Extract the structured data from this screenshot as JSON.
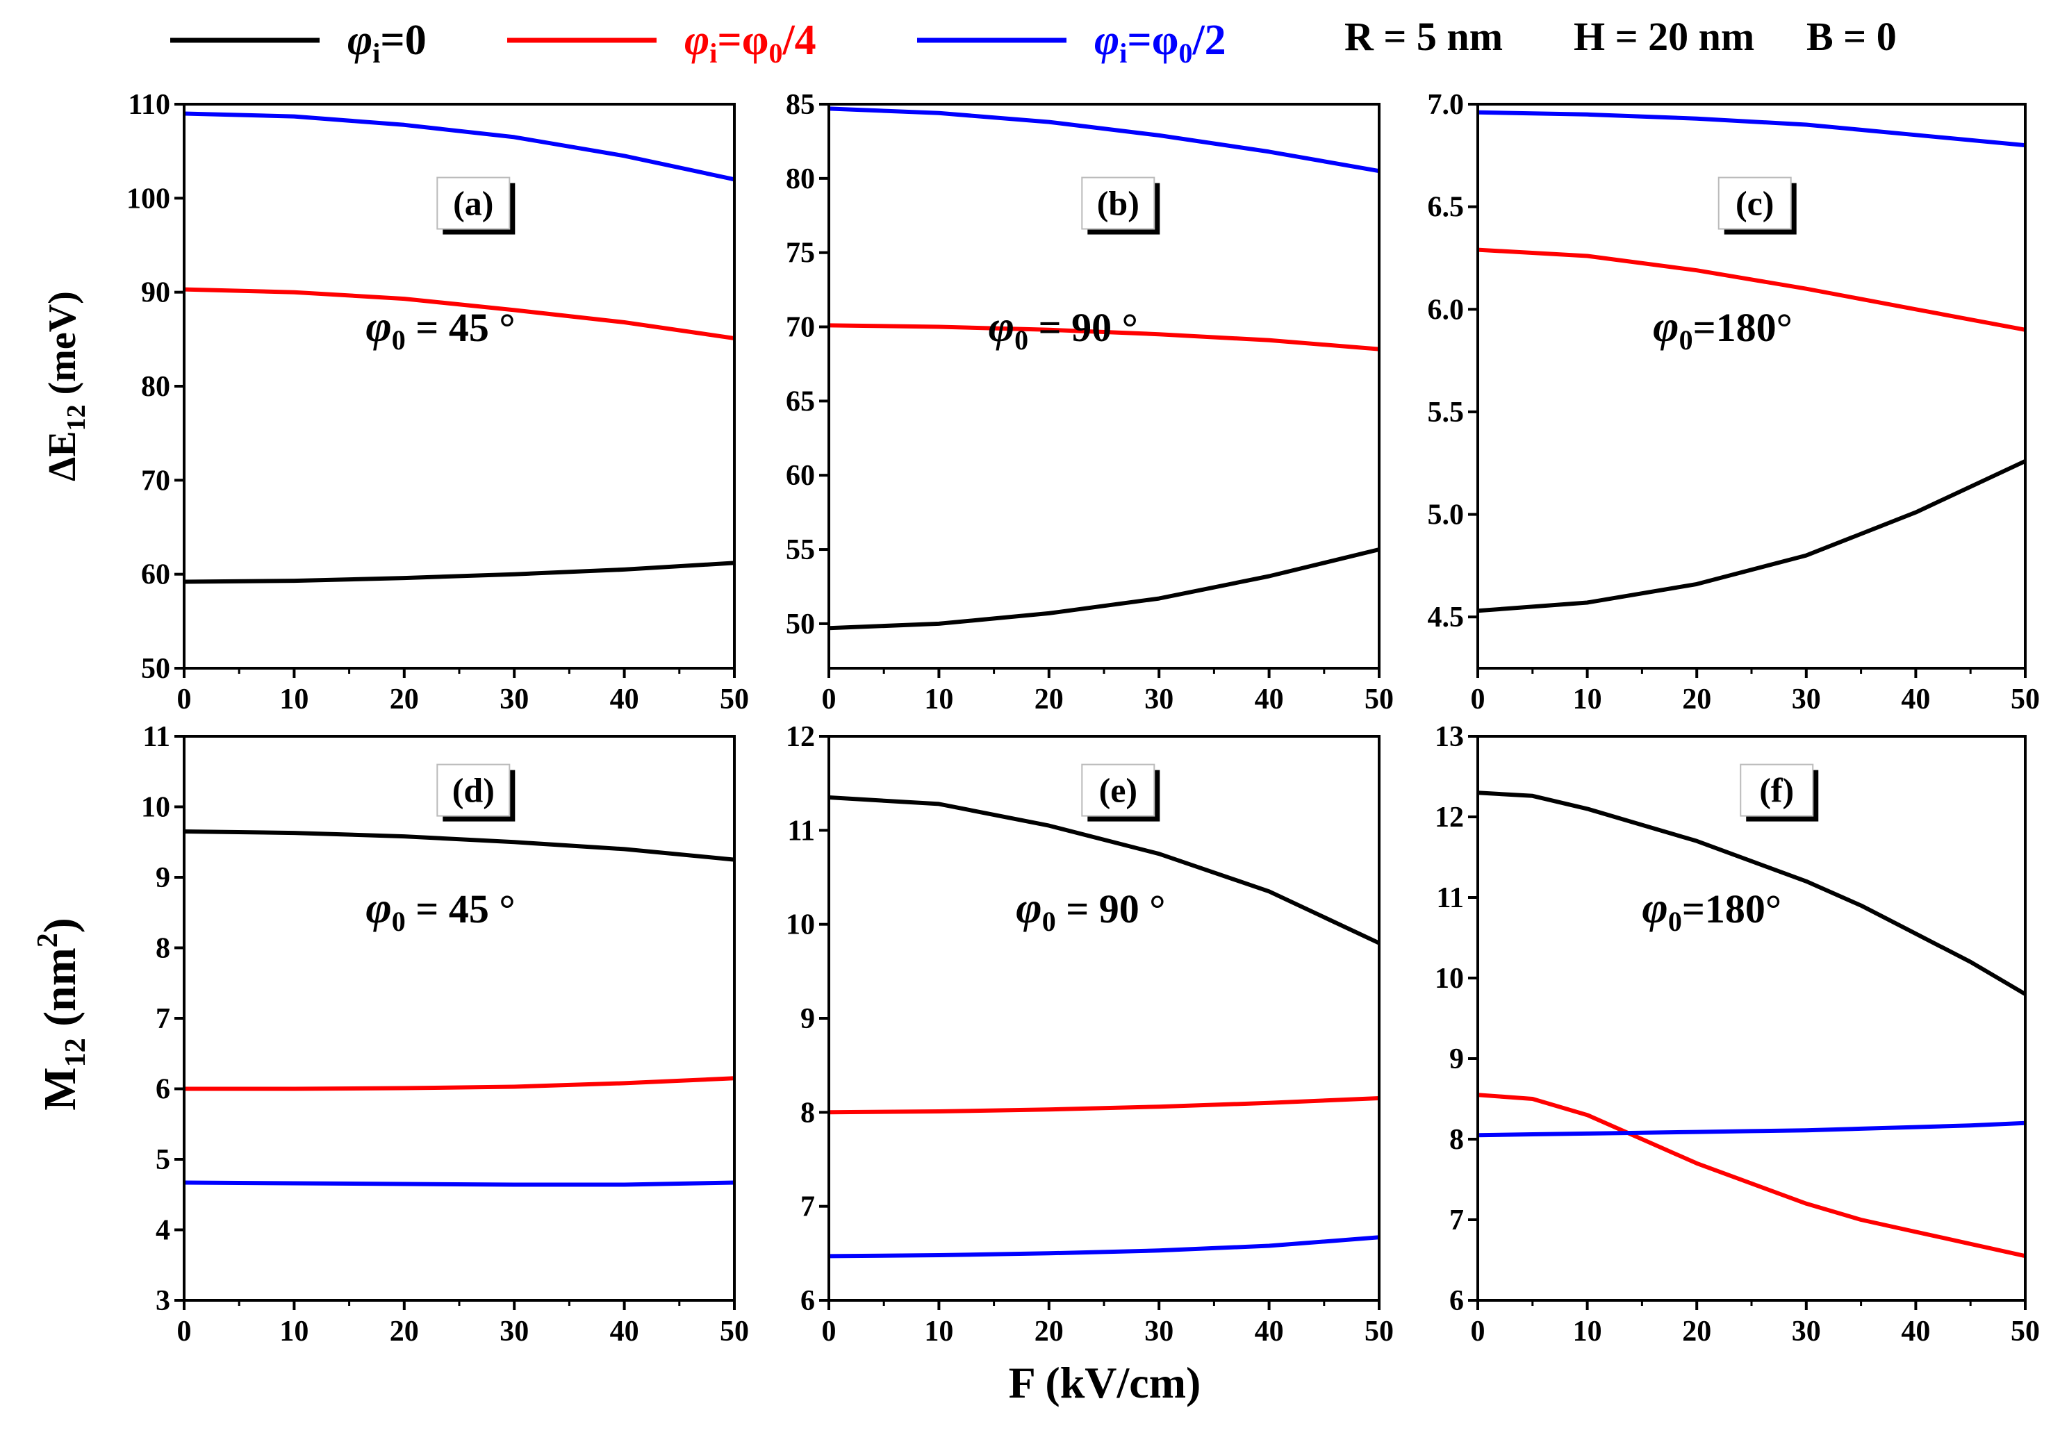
{
  "legend": {
    "entries": [
      {
        "phi": "φ",
        "sub": "i",
        "eq": "=0",
        "color": "#000000"
      },
      {
        "phi": "φ",
        "sub": "i",
        "eq": "=φ",
        "sub2": "0",
        "tail": "/4",
        "color": "#ff0000"
      },
      {
        "phi": "φ",
        "sub": "i",
        "eq": "=φ",
        "sub2": "0",
        "tail": "/2",
        "color": "#0000ff"
      }
    ],
    "params": [
      "R = 5 nm",
      "H = 20 nm",
      "B = 0"
    ]
  },
  "shared_xlabel": "F (kV/cm)",
  "row_ylabels": {
    "top": {
      "main": "ΔE",
      "sub": "12",
      "unit": " (meV)"
    },
    "bottom": {
      "main": "M",
      "sub": "12",
      "unit": " (nm",
      "sup": "2",
      "close": ")"
    }
  },
  "chart_data": [
    {
      "type": "line",
      "panel": "(a)",
      "annotation": {
        "phi": "φ",
        "sub": "0",
        "text": " = 45 °"
      },
      "xlim": [
        0,
        50
      ],
      "ylim": [
        50,
        110
      ],
      "xticks": [
        0,
        10,
        20,
        30,
        40,
        50
      ],
      "yticks": [
        50,
        60,
        70,
        80,
        90,
        100,
        110
      ],
      "x": [
        0,
        10,
        20,
        30,
        40,
        50
      ],
      "series": [
        {
          "name": "φi=0",
          "color": "#000000",
          "values": [
            59.2,
            59.3,
            59.6,
            60.0,
            60.5,
            61.2
          ]
        },
        {
          "name": "φi=φ0/4",
          "color": "#ff0000",
          "values": [
            90.3,
            90.0,
            89.3,
            88.1,
            86.8,
            85.1
          ]
        },
        {
          "name": "φi=φ0/2",
          "color": "#0000ff",
          "values": [
            109.0,
            108.7,
            107.8,
            106.5,
            104.5,
            102.0
          ]
        }
      ]
    },
    {
      "type": "line",
      "panel": "(b)",
      "annotation": {
        "phi": "φ",
        "sub": "0",
        "text": " = 90 °"
      },
      "xlim": [
        0,
        50
      ],
      "ylim": [
        47,
        85
      ],
      "xticks": [
        0,
        10,
        20,
        30,
        40,
        50
      ],
      "yticks": [
        50,
        55,
        60,
        65,
        70,
        75,
        80,
        85
      ],
      "x": [
        0,
        10,
        20,
        30,
        40,
        50
      ],
      "series": [
        {
          "name": "φi=0",
          "color": "#000000",
          "values": [
            49.7,
            50.0,
            50.7,
            51.7,
            53.2,
            55.0
          ]
        },
        {
          "name": "φi=φ0/4",
          "color": "#ff0000",
          "values": [
            70.1,
            70.0,
            69.8,
            69.5,
            69.1,
            68.5
          ]
        },
        {
          "name": "φi=φ0/2",
          "color": "#0000ff",
          "values": [
            84.7,
            84.4,
            83.8,
            82.9,
            81.8,
            80.5
          ]
        }
      ]
    },
    {
      "type": "line",
      "panel": "(c)",
      "annotation": {
        "phi": "φ",
        "sub": "0",
        "text": "=180°"
      },
      "xlim": [
        0,
        50
      ],
      "ylim": [
        4.25,
        7.0
      ],
      "xticks": [
        0,
        10,
        20,
        30,
        40,
        50
      ],
      "yticks": [
        4.5,
        5.0,
        5.5,
        6.0,
        6.5,
        7.0
      ],
      "ytick_labels": [
        "4.5",
        "5.0",
        "5.5",
        "6.0",
        "6.5",
        "7.0"
      ],
      "x": [
        0,
        10,
        20,
        30,
        40,
        50
      ],
      "series": [
        {
          "name": "φi=0",
          "color": "#000000",
          "values": [
            4.53,
            4.57,
            4.66,
            4.8,
            5.01,
            5.26
          ]
        },
        {
          "name": "φi=φ0/4",
          "color": "#ff0000",
          "values": [
            6.29,
            6.26,
            6.19,
            6.1,
            6.0,
            5.9
          ]
        },
        {
          "name": "φi=φ0/2",
          "color": "#0000ff",
          "values": [
            6.96,
            6.95,
            6.93,
            6.9,
            6.85,
            6.8
          ]
        }
      ]
    },
    {
      "type": "line",
      "panel": "(d)",
      "annotation": {
        "phi": "φ",
        "sub": "0",
        "text": " = 45 °"
      },
      "xlim": [
        0,
        50
      ],
      "ylim": [
        3,
        11
      ],
      "xticks": [
        0,
        10,
        20,
        30,
        40,
        50
      ],
      "yticks": [
        3,
        4,
        5,
        6,
        7,
        8,
        9,
        10,
        11
      ],
      "x": [
        0,
        10,
        20,
        30,
        40,
        50
      ],
      "series": [
        {
          "name": "φi=0",
          "color": "#000000",
          "values": [
            9.65,
            9.63,
            9.58,
            9.5,
            9.4,
            9.25
          ]
        },
        {
          "name": "φi=φ0/4",
          "color": "#ff0000",
          "values": [
            6.0,
            6.0,
            6.01,
            6.03,
            6.08,
            6.15
          ]
        },
        {
          "name": "φi=φ0/2",
          "color": "#0000ff",
          "values": [
            4.67,
            4.66,
            4.65,
            4.64,
            4.64,
            4.67
          ]
        }
      ]
    },
    {
      "type": "line",
      "panel": "(e)",
      "annotation": {
        "phi": "φ",
        "sub": "0",
        "text": " = 90 °"
      },
      "xlim": [
        0,
        50
      ],
      "ylim": [
        6,
        12
      ],
      "xticks": [
        0,
        10,
        20,
        30,
        40,
        50
      ],
      "yticks": [
        6,
        7,
        8,
        9,
        10,
        11,
        12
      ],
      "x": [
        0,
        10,
        20,
        30,
        40,
        50
      ],
      "series": [
        {
          "name": "φi=0",
          "color": "#000000",
          "values": [
            11.35,
            11.28,
            11.05,
            10.75,
            10.35,
            9.8
          ]
        },
        {
          "name": "φi=φ0/4",
          "color": "#ff0000",
          "values": [
            8.0,
            8.01,
            8.03,
            8.06,
            8.1,
            8.15
          ]
        },
        {
          "name": "φi=φ0/2",
          "color": "#0000ff",
          "values": [
            6.47,
            6.48,
            6.5,
            6.53,
            6.58,
            6.67
          ]
        }
      ]
    },
    {
      "type": "line",
      "panel": "(f)",
      "annotation": {
        "phi": "φ",
        "sub": "0",
        "text": "=180°"
      },
      "xlim": [
        0,
        50
      ],
      "ylim": [
        6,
        13
      ],
      "xticks": [
        0,
        10,
        20,
        30,
        40,
        50
      ],
      "yticks": [
        6,
        7,
        8,
        9,
        10,
        11,
        12,
        13
      ],
      "x": [
        0,
        5,
        10,
        15,
        20,
        25,
        30,
        35,
        40,
        45,
        50
      ],
      "series": [
        {
          "name": "φi=0",
          "color": "#000000",
          "values": [
            12.3,
            12.26,
            12.1,
            11.9,
            11.7,
            11.45,
            11.2,
            10.9,
            10.55,
            10.2,
            9.8
          ]
        },
        {
          "name": "φi=φ0/4",
          "color": "#ff0000",
          "values": [
            8.55,
            8.5,
            8.3,
            8.0,
            7.7,
            7.45,
            7.2,
            7.0,
            6.85,
            6.7,
            6.55
          ]
        },
        {
          "name": "φi=φ0/2",
          "color": "#0000ff",
          "values": [
            8.05,
            8.06,
            8.07,
            8.08,
            8.09,
            8.1,
            8.11,
            8.13,
            8.15,
            8.17,
            8.2
          ]
        }
      ]
    }
  ]
}
